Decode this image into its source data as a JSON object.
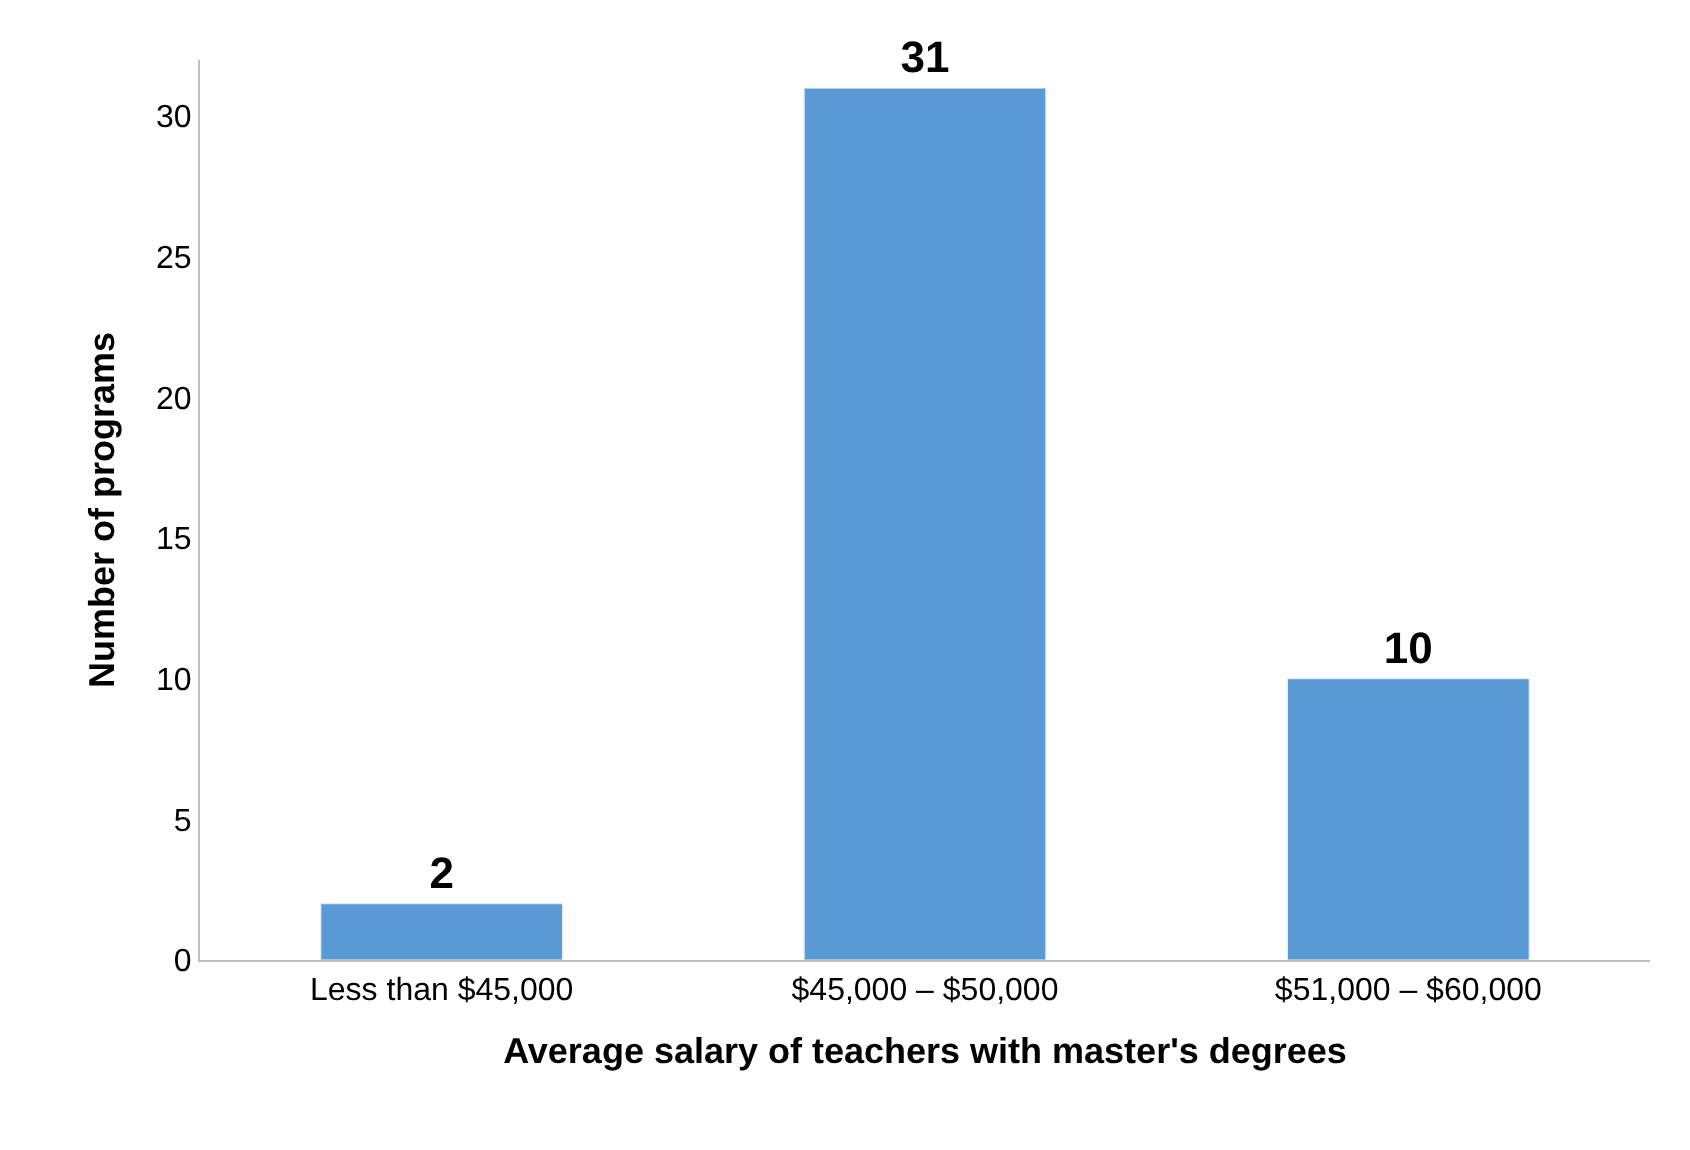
{
  "chart_data": {
    "type": "bar",
    "xlabel": "Average salary of teachers with master's degrees",
    "ylabel": "Number of programs",
    "categories": [
      "Less than $45,000",
      "$45,000 – $50,000",
      "$51,000 – $60,000"
    ],
    "values": [
      2,
      31,
      10
    ],
    "color": "#5b9bd5",
    "data_labels": true,
    "ylim": [
      0,
      32
    ],
    "yticks": [
      0,
      5,
      10,
      15,
      20,
      25,
      30
    ]
  }
}
